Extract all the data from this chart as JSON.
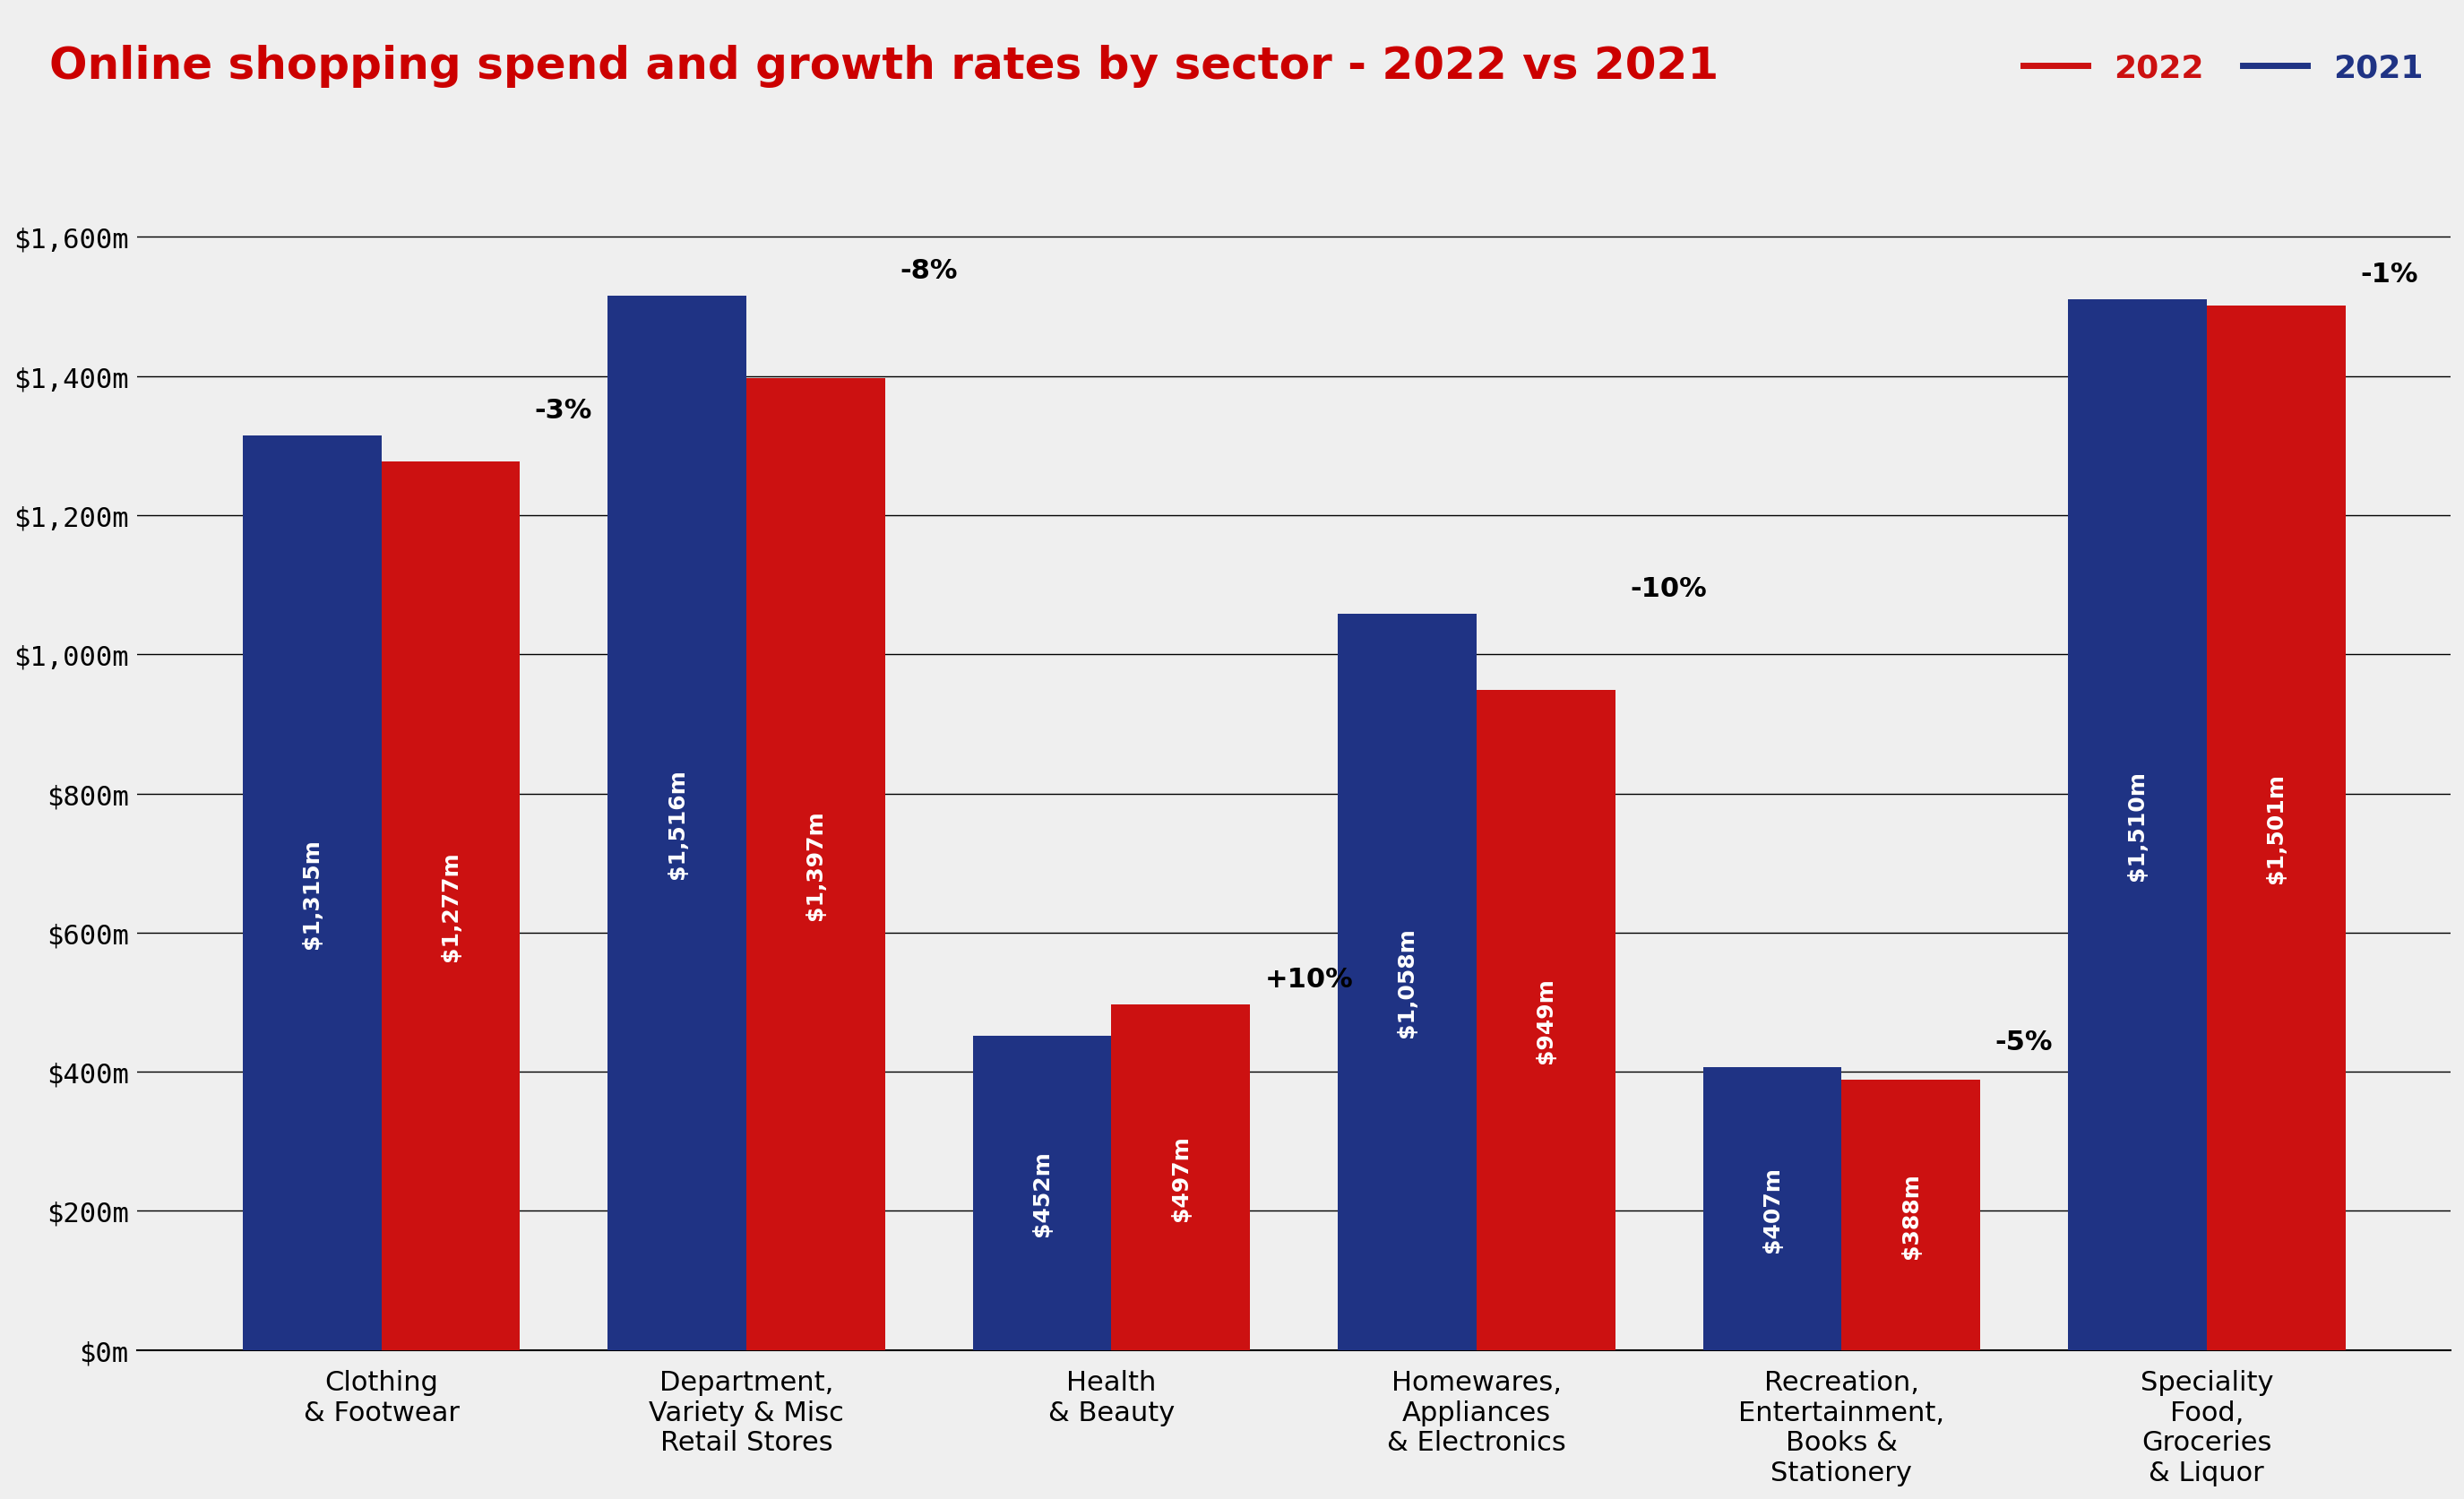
{
  "title": "Online shopping spend and growth rates by sector - 2022 vs 2021",
  "title_color": "#CC0000",
  "background_color": "#EFEFEF",
  "categories": [
    "Clothing\n& Footwear",
    "Department,\nVariety & Misc\nRetail Stores",
    "Health\n& Beauty",
    "Homewares,\nAppliances\n& Electronics",
    "Recreation,\nEntertainment,\nBooks &\nStationery",
    "Speciality\nFood,\nGroceries\n& Liquor"
  ],
  "values_2021": [
    1315,
    1516,
    452,
    1058,
    407,
    1510
  ],
  "values_2022": [
    1277,
    1397,
    497,
    949,
    388,
    1501
  ],
  "labels_2021": [
    "$1,315m",
    "$1,516m",
    "$452m",
    "$1,058m",
    "$407m",
    "$1,510m"
  ],
  "labels_2022": [
    "$1,277m",
    "$1,397m",
    "$497m",
    "$949m",
    "$388m",
    "$1,501m"
  ],
  "growth_labels": [
    "-3%",
    "-8%",
    "+10%",
    "-10%",
    "-5%",
    "-1%"
  ],
  "color_2021": "#1F3384",
  "color_2022": "#CC1111",
  "bar_width": 0.38,
  "ylim": [
    0,
    1750
  ],
  "yticks": [
    0,
    200,
    400,
    600,
    800,
    1000,
    1200,
    1400,
    1600
  ],
  "ytick_labels": [
    "$0m",
    "$200m",
    "$400m",
    "$600m",
    "$800m",
    "$1,000m",
    "$1,200m",
    "$1,400m",
    "$1,600m"
  ],
  "legend_2022": "2022",
  "legend_2021": "2021",
  "bar_label_fontsize": 18,
  "growth_label_fontsize": 22,
  "tick_fontsize": 22,
  "title_fontsize": 36,
  "legend_fontsize": 26,
  "xlabel_fontsize": 22
}
